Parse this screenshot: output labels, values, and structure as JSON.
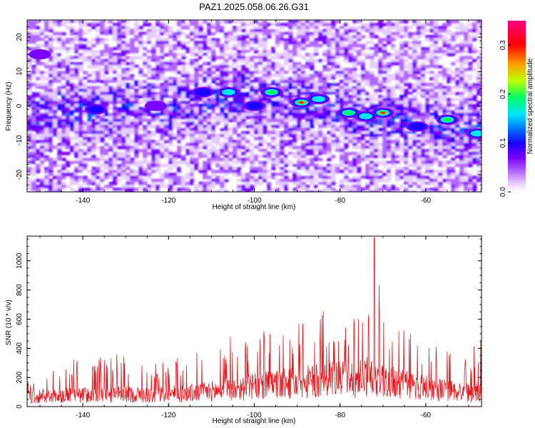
{
  "title": "PAZ1.2025.058.06.26.G31",
  "chart_data": [
    {
      "type": "heatmap",
      "xlabel": "Height of straight line (km)",
      "ylabel": "Frequency (Hz)",
      "xlim": [
        -153,
        -47
      ],
      "ylim": [
        -25,
        25
      ],
      "xticks": [
        -140,
        -120,
        -100,
        -80,
        -60
      ],
      "yticks": [
        -20,
        -10,
        0,
        10,
        20
      ],
      "grid": false,
      "colorbar": {
        "label": "Normalized spectral amplitude",
        "range": [
          0.0,
          0.35
        ],
        "ticks": [
          0.0,
          0.1,
          0.2,
          0.3
        ],
        "colors": [
          "#ffffff",
          "#e6ccff",
          "#b266ff",
          "#7a00ff",
          "#1a00ff",
          "#0066ff",
          "#00e5ff",
          "#00ff66",
          "#bfff00",
          "#ff9900",
          "#ff0000",
          "#ff00aa"
        ]
      },
      "ridge": {
        "description_x": [
          -153,
          -140,
          -130,
          -120,
          -110,
          -100,
          -90,
          -80,
          -70,
          -60,
          -47
        ],
        "frequency_center": [
          -2,
          -1,
          0,
          1,
          2,
          3,
          1,
          -1,
          -3,
          -5,
          -8
        ]
      },
      "peaks": [
        {
          "x": -89,
          "y": 1,
          "amplitude": 0.33
        },
        {
          "x": -70,
          "y": -2,
          "amplitude": 0.32
        },
        {
          "x": -96,
          "y": 4,
          "amplitude": 0.22
        },
        {
          "x": -112,
          "y": 4,
          "amplitude": 0.15
        },
        {
          "x": -106,
          "y": 4,
          "amplitude": 0.17
        },
        {
          "x": -85,
          "y": 2,
          "amplitude": 0.18
        },
        {
          "x": -78,
          "y": -2,
          "amplitude": 0.22
        },
        {
          "x": -74,
          "y": -3,
          "amplitude": 0.18
        },
        {
          "x": -55,
          "y": -4,
          "amplitude": 0.25
        },
        {
          "x": -62,
          "y": -6,
          "amplitude": 0.16
        },
        {
          "x": -48,
          "y": -8,
          "amplitude": 0.17
        },
        {
          "x": -150,
          "y": 15,
          "amplitude": 0.1
        },
        {
          "x": -137,
          "y": -1,
          "amplitude": 0.12
        },
        {
          "x": -123,
          "y": 0,
          "amplitude": 0.11
        },
        {
          "x": -100,
          "y": 0,
          "amplitude": 0.12
        }
      ]
    },
    {
      "type": "line",
      "xlabel": "Height of straight line (km)",
      "ylabel": "SNR (10 * v/v)",
      "xlim": [
        -153,
        -47
      ],
      "ylim": [
        0,
        1170
      ],
      "xticks": [
        -140,
        -120,
        -100,
        -80,
        -60
      ],
      "yticks": [
        0,
        200,
        400,
        600,
        800,
        1000
      ],
      "grid": false,
      "series": [
        {
          "color": "#e8181e",
          "envelope_x": [
            -153,
            -145,
            -140,
            -135,
            -130,
            -125,
            -120,
            -115,
            -110,
            -105,
            -100,
            -95,
            -90,
            -85,
            -80,
            -75,
            -72,
            -70,
            -65,
            -60,
            -55,
            -50,
            -47
          ],
          "envelope_mean": [
            90,
            95,
            100,
            100,
            105,
            100,
            110,
            115,
            130,
            150,
            170,
            190,
            200,
            220,
            230,
            240,
            280,
            230,
            190,
            160,
            140,
            120,
            120
          ],
          "envelope_max": [
            200,
            280,
            380,
            330,
            380,
            280,
            330,
            390,
            430,
            520,
            480,
            560,
            600,
            640,
            720,
            600,
            1160,
            660,
            560,
            430,
            400,
            390,
            460
          ],
          "peak": {
            "x": -72,
            "y": 1160
          }
        }
      ]
    }
  ]
}
